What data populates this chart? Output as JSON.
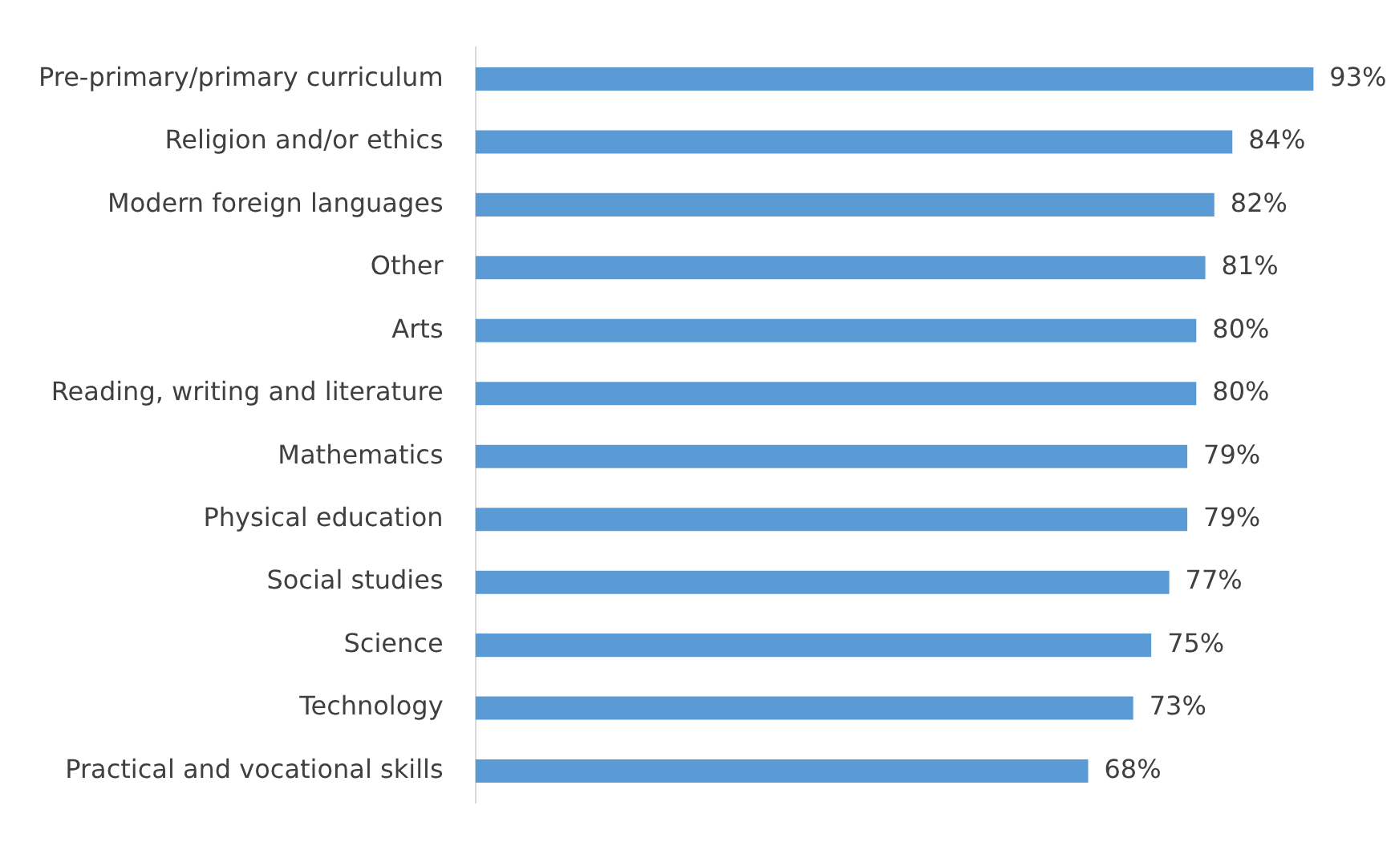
{
  "chart_data": {
    "type": "bar",
    "orientation": "horizontal",
    "categories": [
      "Pre-primary/primary curriculum",
      "Religion and/or ethics",
      "Modern foreign languages",
      "Other",
      "Arts",
      "Reading, writing and literature",
      "Mathematics",
      "Physical education",
      "Social studies",
      "Science",
      "Technology",
      "Practical and vocational skills"
    ],
    "values": [
      93,
      84,
      82,
      81,
      80,
      80,
      79,
      79,
      77,
      75,
      73,
      68
    ],
    "value_labels": [
      "93%",
      "84%",
      "82%",
      "81%",
      "80%",
      "80%",
      "79%",
      "79%",
      "77%",
      "75%",
      "73%",
      "68%"
    ],
    "color": "#5b9bd5",
    "tick_labels": "y",
    "grid": false,
    "legend": false
  }
}
